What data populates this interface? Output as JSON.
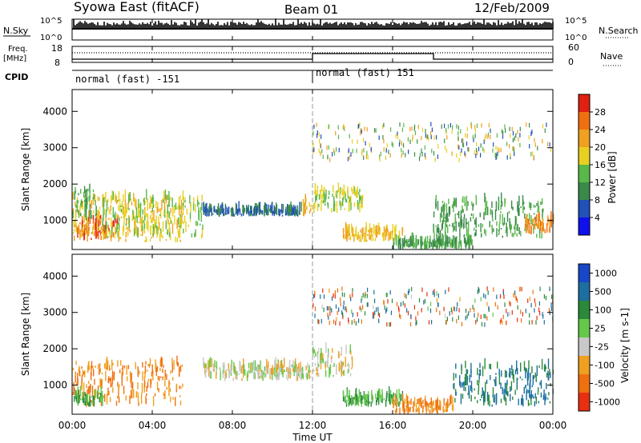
{
  "header": {
    "title": "Syowa East (fitACF)",
    "beam": "Beam 01",
    "date": "12/Feb/2009"
  },
  "top_panels": {
    "nsky_label": "N.Sky",
    "nsearch_label": "N.Search",
    "freq_label_line1": "Freq.",
    "freq_label_line2": "[MHz]",
    "nave_label": "Nave",
    "cpid_label": "CPID",
    "cpid_before": "normal (fast) -151",
    "cpid_after": "normal (fast) 151",
    "noise_ticks": [
      "10^5",
      "10^0"
    ],
    "freq_ticks": [
      "18",
      "8"
    ],
    "nave_ticks": [
      "60",
      "0"
    ]
  },
  "colors": {
    "power_scale": [
      "#1010ee",
      "#2050b8",
      "#3a8a4a",
      "#5ab84a",
      "#e8d020",
      "#f0a020",
      "#f07010",
      "#e02010"
    ],
    "velocity_scale": [
      "#1848c8",
      "#1c6fa0",
      "#2a8a3a",
      "#64c84a",
      "#c8c8c8",
      "#f0a020",
      "#f07010",
      "#e83010"
    ]
  },
  "chart_data": [
    {
      "type": "heatmap",
      "panel": "power",
      "ylabel": "Slant Range [km]",
      "yticks": [
        "1000",
        "2000",
        "3000",
        "4000"
      ],
      "ylim": [
        200,
        4600
      ],
      "colorbar_label": "Power [dB]",
      "colorbar_ticks": [
        "4",
        "8",
        "12",
        "16",
        "20",
        "24",
        "28"
      ],
      "colorbar_range": [
        0,
        32
      ],
      "regions": [
        {
          "t": [
            0.2,
            2.4
          ],
          "r": [
            450,
            950
          ],
          "level": 28
        },
        {
          "t": [
            0,
            5.5
          ],
          "r": [
            400,
            1600
          ],
          "level": 20
        },
        {
          "t": [
            1.5,
            6.5
          ],
          "r": [
            500,
            1600
          ],
          "level": 16
        },
        {
          "t": [
            0,
            1.2
          ],
          "r": [
            1000,
            1800
          ],
          "level": 12
        },
        {
          "t": [
            6.5,
            11.5
          ],
          "r": [
            1100,
            1250
          ],
          "level": 8
        },
        {
          "t": [
            11.5,
            12
          ],
          "r": [
            1100,
            1500
          ],
          "level": 20
        },
        {
          "t": [
            12,
            14.5
          ],
          "r": [
            1200,
            1800
          ],
          "level": 16
        },
        {
          "t": [
            13.5,
            16.5
          ],
          "r": [
            400,
            700
          ],
          "level": 20
        },
        {
          "t": [
            16,
            20
          ],
          "r": [
            200,
            400
          ],
          "level": 12
        },
        {
          "t": [
            18,
            23.5
          ],
          "r": [
            500,
            1500
          ],
          "level": 12
        },
        {
          "t": [
            22.5,
            24
          ],
          "r": [
            600,
            1000
          ],
          "level": 24
        }
      ]
    },
    {
      "type": "heatmap",
      "panel": "velocity",
      "ylabel": "Slant Range [km]",
      "yticks": [
        "1000",
        "2000",
        "3000",
        "4000"
      ],
      "ylim": [
        200,
        4600
      ],
      "xlabel": "Time UT",
      "xticks": [
        "00:00",
        "04:00",
        "08:00",
        "12:00",
        "16:00",
        "20:00",
        "00:00"
      ],
      "xlim": [
        0,
        24
      ],
      "colorbar_label": "Velocity [m s-1]",
      "colorbar_ticks": [
        "1000",
        "500",
        "100",
        "25",
        "-25",
        "-100",
        "-500",
        "-1000"
      ],
      "regions": [
        {
          "t": [
            0,
            5.5
          ],
          "r": [
            400,
            1600
          ],
          "level": -100
        },
        {
          "t": [
            0,
            1.5
          ],
          "r": [
            400,
            700
          ],
          "level": 100
        },
        {
          "t": [
            6.5,
            12
          ],
          "r": [
            1100,
            1500
          ],
          "level": 0
        },
        {
          "t": [
            12,
            14
          ],
          "r": [
            1200,
            1900
          ],
          "level": 0
        },
        {
          "t": [
            13.5,
            16.5
          ],
          "r": [
            400,
            700
          ],
          "level": 100
        },
        {
          "t": [
            16,
            19
          ],
          "r": [
            200,
            500
          ],
          "level": -100
        },
        {
          "t": [
            19,
            24
          ],
          "r": [
            400,
            1500
          ],
          "level": 500
        }
      ]
    }
  ]
}
